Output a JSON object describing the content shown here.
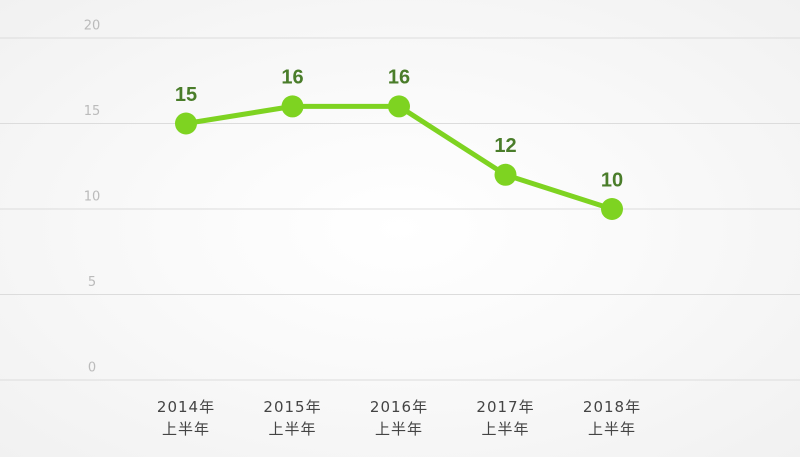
{
  "chart_data": {
    "type": "line",
    "categories": [
      "2014年\n上半年",
      "2015年\n上半年",
      "2016年\n上半年",
      "2017年\n上半年",
      "2018年\n上半年"
    ],
    "values": [
      15,
      16,
      16,
      12,
      10
    ],
    "color": "#7ed321",
    "ylim": [
      0,
      20
    ],
    "yticks": [
      0,
      5,
      10,
      15,
      20
    ],
    "grid": true
  }
}
